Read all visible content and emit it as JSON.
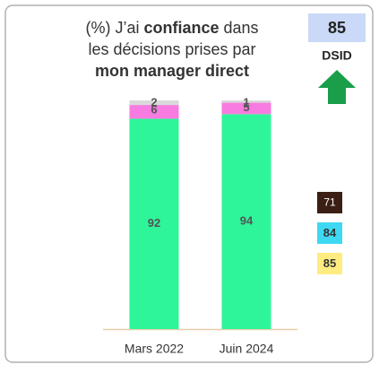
{
  "chart_data": {
    "type": "stacked_bar",
    "title_lines": [
      [
        "(%) J’ai ",
        "confiance",
        " dans"
      ],
      [
        "les décisions prises par"
      ],
      [
        "mon manager direct"
      ]
    ],
    "title_bold": [
      [
        false,
        true,
        false
      ],
      [
        false
      ],
      [
        true
      ]
    ],
    "categories": [
      "Mars 2022",
      "Juin 2024"
    ],
    "series": [
      {
        "color": "#2ef59a",
        "values": [
          92,
          94
        ]
      },
      {
        "color": "#f77be0",
        "values": [
          6,
          5
        ]
      },
      {
        "color": "#d9d9d9",
        "values": [
          2,
          1
        ]
      }
    ],
    "score": {
      "value": 85,
      "label": "DSID",
      "color": "#c9d9f7",
      "trend": "up",
      "trend_color": "#1a9e4a"
    },
    "benchmarks": [
      {
        "value": 71,
        "color": "#3b1f14",
        "text_color": "#ffffff"
      },
      {
        "value": 84,
        "color": "#3fd8f2",
        "text_color": "#333333"
      },
      {
        "value": 85,
        "color": "#ffec80",
        "text_color": "#333333"
      }
    ]
  }
}
